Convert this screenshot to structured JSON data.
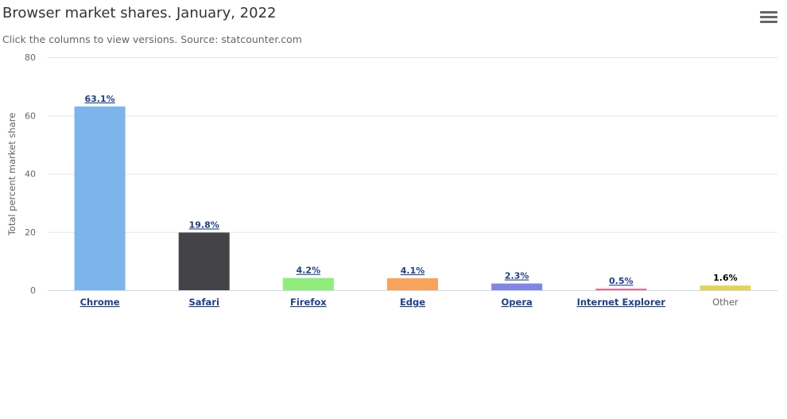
{
  "header": {
    "menu_icon": "hamburger-menu-icon"
  },
  "chart_data": {
    "type": "bar",
    "title": "Browser market shares. January, 2022",
    "subtitle": "Click the columns to view versions. Source: statcounter.com",
    "ylabel": "Total percent market share",
    "xlabel": "",
    "ylim": [
      0,
      80
    ],
    "yticks": [
      "0",
      "20",
      "40",
      "60",
      "80"
    ],
    "grid": true,
    "legend": "none",
    "categories": [
      "Chrome",
      "Safari",
      "Firefox",
      "Edge",
      "Opera",
      "Internet Explorer",
      "Other"
    ],
    "values": [
      63.1,
      19.8,
      4.2,
      4.1,
      2.3,
      0.5,
      1.6
    ],
    "data_labels": [
      "63.1%",
      "19.8%",
      "4.2%",
      "4.1%",
      "2.3%",
      "0.5%",
      "1.6%"
    ],
    "colors": [
      "#7cb5ec",
      "#434348",
      "#90ed7d",
      "#f7a35c",
      "#8085e9",
      "#f15c80",
      "#e4d354"
    ],
    "drilldown": [
      true,
      true,
      true,
      true,
      true,
      true,
      false
    ]
  }
}
